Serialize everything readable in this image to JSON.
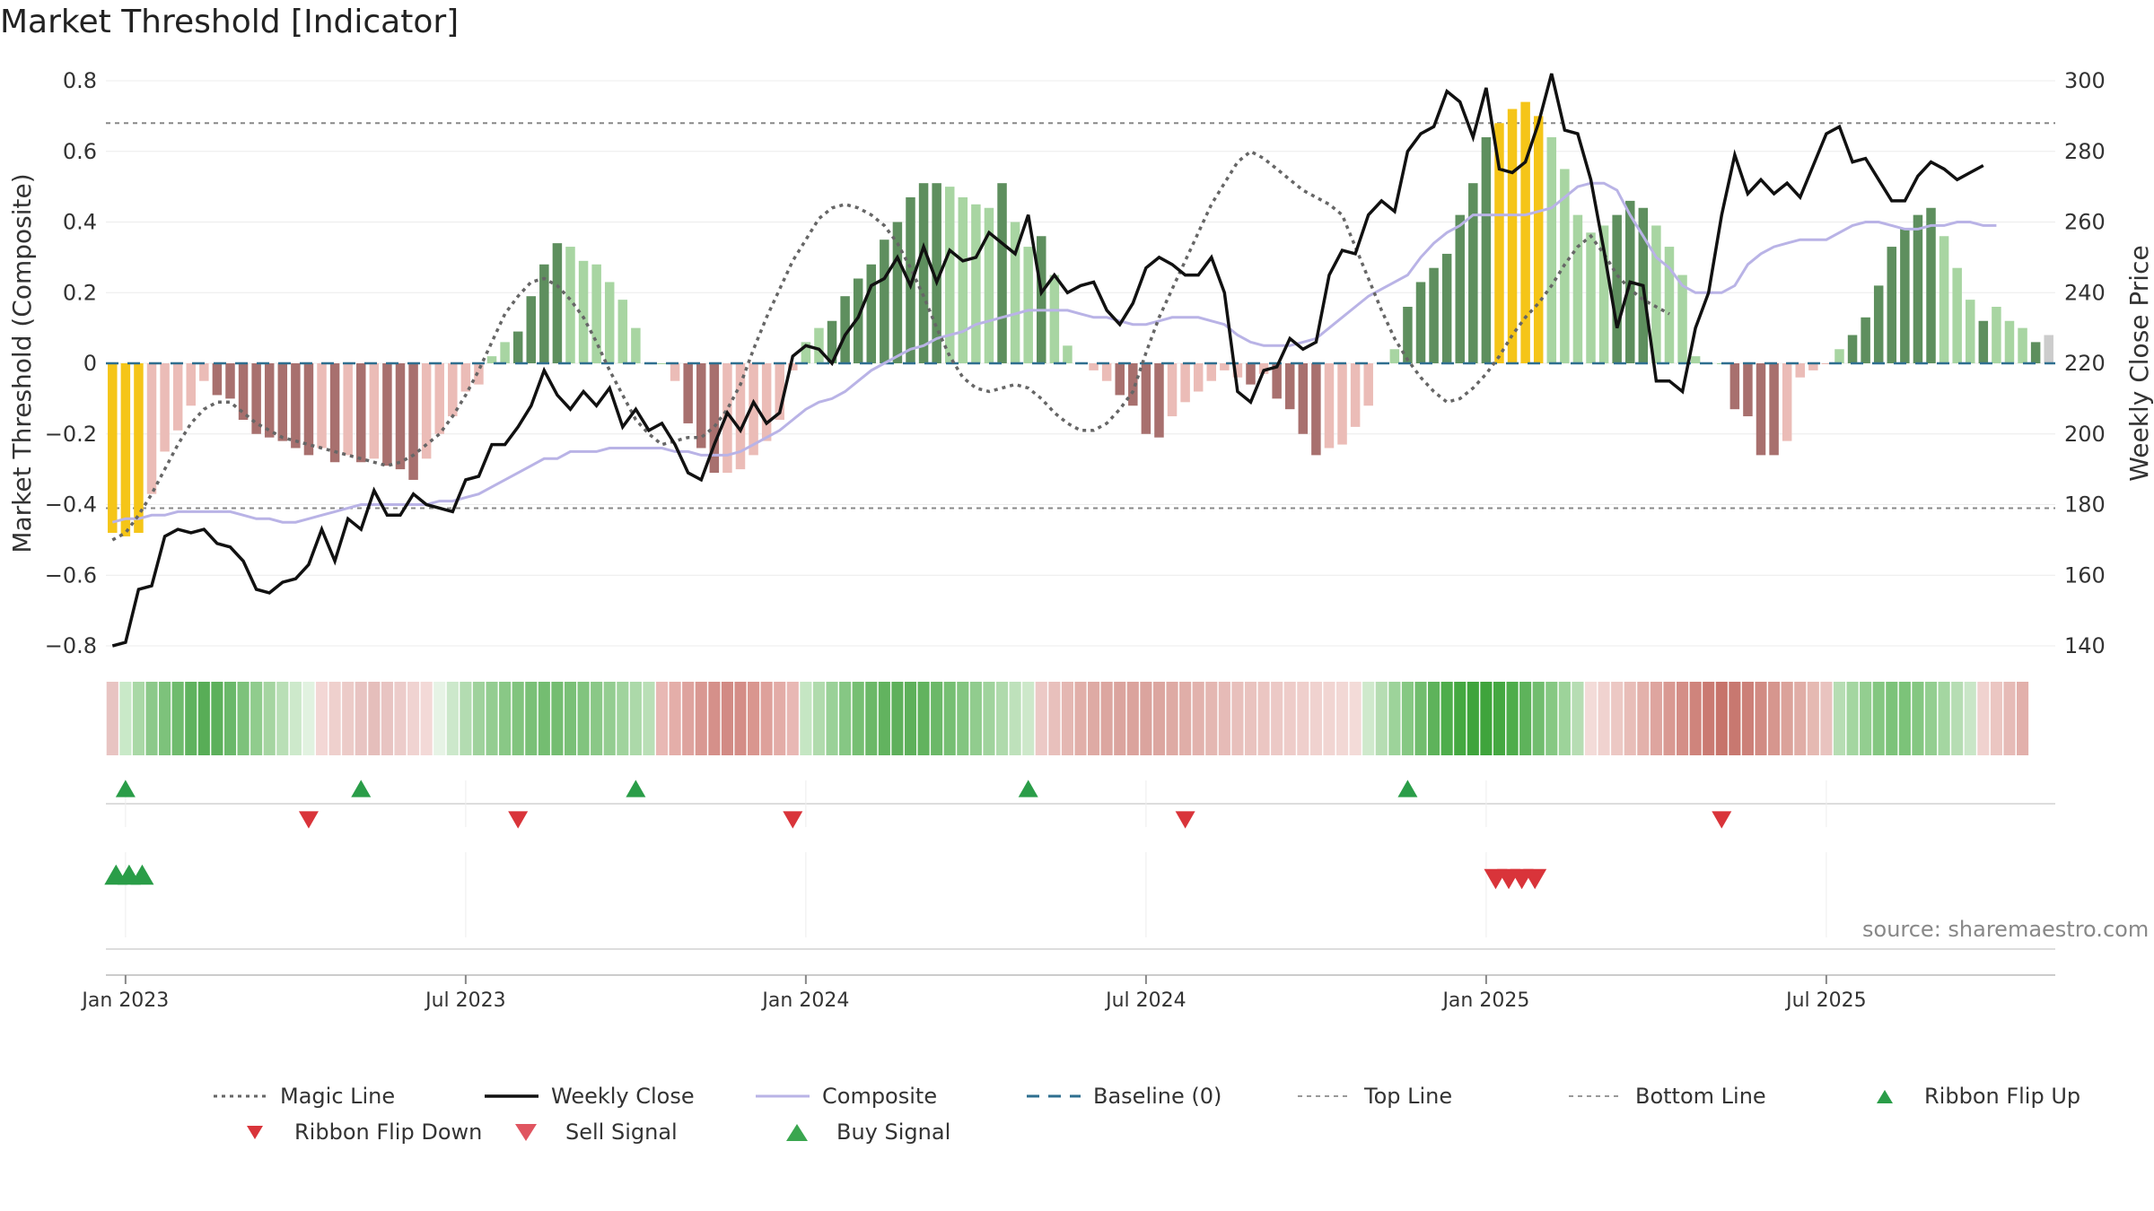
{
  "title": "Market Threshold [Indicator]",
  "source_note": "source: sharemaestro.com",
  "colors": {
    "strong_green": "#5e8f5e",
    "light_green": "#a8d5a2",
    "strong_red": "#a8706e",
    "light_red": "#ebbcb7",
    "yellow": "#f5c518",
    "composite": "#b9b3e6",
    "close": "#111111",
    "magic": "#666666",
    "baseline": "#2f6f8f",
    "buy": "#2a9d48",
    "sell": "#d9343a"
  },
  "chart_data": {
    "type": "bar+line",
    "ylabel_left": "Market Threshold (Composite)",
    "ylabel_right": "Weekly Close Price",
    "left_ticks": [
      0.8,
      0.6,
      0.4,
      0.2,
      0,
      -0.2,
      -0.4,
      -0.6,
      -0.8
    ],
    "left_tick_labels": [
      "0.8",
      "0.6",
      "0.4",
      "0.2",
      "0",
      "−0.2",
      "−0.4",
      "−0.6",
      "−0.8"
    ],
    "right_ticks": [
      300,
      280,
      260,
      240,
      220,
      200,
      180,
      160,
      140
    ],
    "right_tick_labels": [
      "300",
      "280",
      "260",
      "240",
      "220",
      "200",
      "180",
      "160",
      "140"
    ],
    "ylim_left": [
      -0.8,
      0.8
    ],
    "ylim_right": [
      140,
      300
    ],
    "x_ticks": [
      "Jan 2023",
      "Jul 2023",
      "Jan 2024",
      "Jul 2024",
      "Jan 2025",
      "Jul 2025"
    ],
    "x_tick_weeks": [
      1,
      27,
      53,
      79,
      105,
      131
    ],
    "top_line": 0.68,
    "bottom_line": -0.41,
    "bars": [
      -0.48,
      -0.49,
      -0.48,
      -0.37,
      -0.25,
      -0.19,
      -0.12,
      -0.05,
      -0.09,
      -0.1,
      -0.16,
      -0.2,
      -0.21,
      -0.22,
      -0.24,
      -0.26,
      -0.24,
      -0.28,
      -0.26,
      -0.28,
      -0.27,
      -0.29,
      -0.3,
      -0.33,
      -0.27,
      -0.2,
      -0.15,
      -0.08,
      -0.06,
      0.02,
      0.06,
      0.09,
      0.19,
      0.28,
      0.34,
      0.33,
      0.29,
      0.28,
      0.23,
      0.18,
      0.1,
      0.0,
      0.0,
      -0.05,
      -0.17,
      -0.24,
      -0.31,
      -0.31,
      -0.3,
      -0.26,
      -0.22,
      -0.16,
      -0.02,
      0.06,
      0.1,
      0.12,
      0.19,
      0.24,
      0.28,
      0.35,
      0.4,
      0.47,
      0.51,
      0.51,
      0.5,
      0.47,
      0.45,
      0.44,
      0.51,
      0.4,
      0.33,
      0.36,
      0.25,
      0.05,
      0.0,
      -0.02,
      -0.05,
      -0.09,
      -0.12,
      -0.2,
      -0.21,
      -0.15,
      -0.11,
      -0.08,
      -0.05,
      -0.02,
      -0.04,
      -0.06,
      -0.03,
      -0.1,
      -0.13,
      -0.2,
      -0.26,
      -0.24,
      -0.23,
      -0.18,
      -0.12,
      0.0,
      0.04,
      0.16,
      0.23,
      0.27,
      0.31,
      0.42,
      0.51,
      0.64,
      0.68,
      0.72,
      0.74,
      0.7,
      0.64,
      0.55,
      0.42,
      0.37,
      0.39,
      0.42,
      0.46,
      0.44,
      0.39,
      0.33,
      0.25,
      0.02,
      0.0,
      0.0,
      -0.13,
      -0.15,
      -0.26,
      -0.26,
      -0.22,
      -0.04,
      -0.02,
      0.0,
      0.04,
      0.08,
      0.13,
      0.22,
      0.33,
      0.38,
      0.42,
      0.44,
      0.36,
      0.27,
      0.18,
      0.12,
      0.16,
      0.12,
      0.1,
      0.06,
      0.08
    ],
    "bar_colors": [
      "yellow",
      "yellow",
      "yellow",
      "light_red",
      "light_red",
      "light_red",
      "light_red",
      "light_red",
      "strong_red",
      "strong_red",
      "strong_red",
      "strong_red",
      "strong_red",
      "strong_red",
      "strong_red",
      "strong_red",
      "light_red",
      "strong_red",
      "light_red",
      "strong_red",
      "light_red",
      "strong_red",
      "strong_red",
      "strong_red",
      "light_red",
      "light_red",
      "light_red",
      "light_red",
      "light_red",
      "light_green",
      "light_green",
      "strong_green",
      "strong_green",
      "strong_green",
      "strong_green",
      "light_green",
      "light_green",
      "light_green",
      "light_green",
      "light_green",
      "light_green",
      "light_green",
      "light_green",
      "light_red",
      "strong_red",
      "strong_red",
      "strong_red",
      "light_red",
      "light_red",
      "light_red",
      "light_red",
      "light_red",
      "light_red",
      "light_green",
      "light_green",
      "strong_green",
      "strong_green",
      "strong_green",
      "strong_green",
      "strong_green",
      "strong_green",
      "strong_green",
      "strong_green",
      "strong_green",
      "light_green",
      "light_green",
      "light_green",
      "light_green",
      "strong_green",
      "light_green",
      "light_green",
      "strong_green",
      "light_green",
      "light_green",
      "light_green",
      "light_red",
      "light_red",
      "strong_red",
      "strong_red",
      "strong_red",
      "strong_red",
      "light_red",
      "light_red",
      "light_red",
      "light_red",
      "light_red",
      "light_red",
      "strong_red",
      "light_red",
      "strong_red",
      "strong_red",
      "strong_red",
      "strong_red",
      "light_red",
      "light_red",
      "light_red",
      "light_red",
      "light_green",
      "light_green",
      "strong_green",
      "strong_green",
      "strong_green",
      "strong_green",
      "strong_green",
      "strong_green",
      "strong_green",
      "yellow",
      "yellow",
      "yellow",
      "yellow",
      "light_green",
      "light_green",
      "light_green",
      "light_green",
      "light_green",
      "strong_green",
      "strong_green",
      "strong_green",
      "light_green",
      "light_green",
      "light_green",
      "light_green",
      "light_green",
      "light_green",
      "strong_red",
      "strong_red",
      "strong_red",
      "strong_red",
      "light_red",
      "light_red",
      "light_red",
      "light_red",
      "light_green",
      "strong_green",
      "strong_green",
      "strong_green",
      "strong_green",
      "strong_green",
      "strong_green",
      "strong_green",
      "light_green",
      "light_green",
      "light_green",
      "strong_green",
      "light_green",
      "light_green",
      "light_green",
      "strong_green"
    ],
    "close": [
      140,
      141,
      156,
      157,
      171,
      173,
      172,
      173,
      169,
      168,
      164,
      156,
      155,
      158,
      159,
      163,
      173,
      164,
      176,
      173,
      184,
      177,
      177,
      183,
      180,
      179,
      178,
      187,
      188,
      197,
      197,
      202,
      208,
      218,
      211,
      207,
      212,
      208,
      213,
      202,
      207,
      201,
      203,
      197,
      189,
      187,
      197,
      206,
      201,
      209,
      203,
      206,
      222,
      225,
      224,
      220,
      228,
      233,
      242,
      244,
      250,
      242,
      253,
      243,
      252,
      249,
      250,
      257,
      254,
      251,
      262,
      240,
      245,
      240,
      242,
      243,
      235,
      231,
      237,
      247,
      250,
      248,
      245,
      245,
      250,
      240,
      212,
      209,
      218,
      219,
      227,
      224,
      226,
      245,
      252,
      251,
      262,
      266,
      263,
      280,
      285,
      287,
      297,
      294,
      284,
      298,
      275,
      274,
      277,
      288,
      302,
      286,
      285,
      272,
      252,
      230,
      243,
      242,
      215,
      215,
      212,
      230,
      240,
      262,
      279,
      268,
      272,
      268,
      271,
      267,
      276,
      285,
      287,
      277,
      278,
      272,
      266,
      266,
      273,
      277,
      275,
      272,
      274,
      276
    ],
    "composite": [
      -0.45,
      -0.44,
      -0.44,
      -0.43,
      -0.43,
      -0.42,
      -0.42,
      -0.42,
      -0.42,
      -0.42,
      -0.43,
      -0.44,
      -0.44,
      -0.45,
      -0.45,
      -0.44,
      -0.43,
      -0.42,
      -0.41,
      -0.4,
      -0.4,
      -0.4,
      -0.4,
      -0.4,
      -0.4,
      -0.39,
      -0.39,
      -0.38,
      -0.37,
      -0.35,
      -0.33,
      -0.31,
      -0.29,
      -0.27,
      -0.27,
      -0.25,
      -0.25,
      -0.25,
      -0.24,
      -0.24,
      -0.24,
      -0.24,
      -0.24,
      -0.25,
      -0.25,
      -0.26,
      -0.26,
      -0.26,
      -0.25,
      -0.23,
      -0.21,
      -0.19,
      -0.16,
      -0.13,
      -0.11,
      -0.1,
      -0.08,
      -0.05,
      -0.02,
      0.0,
      0.02,
      0.04,
      0.05,
      0.07,
      0.08,
      0.09,
      0.11,
      0.12,
      0.13,
      0.14,
      0.15,
      0.15,
      0.15,
      0.15,
      0.14,
      0.13,
      0.13,
      0.12,
      0.11,
      0.11,
      0.12,
      0.13,
      0.13,
      0.13,
      0.12,
      0.11,
      0.08,
      0.06,
      0.05,
      0.05,
      0.05,
      0.06,
      0.07,
      0.1,
      0.13,
      0.16,
      0.19,
      0.21,
      0.23,
      0.25,
      0.3,
      0.34,
      0.37,
      0.39,
      0.42,
      0.42,
      0.42,
      0.42,
      0.42,
      0.43,
      0.44,
      0.47,
      0.5,
      0.51,
      0.51,
      0.49,
      0.42,
      0.36,
      0.3,
      0.27,
      0.22,
      0.2,
      0.2,
      0.2,
      0.22,
      0.28,
      0.31,
      0.33,
      0.34,
      0.35,
      0.35,
      0.35,
      0.37,
      0.39,
      0.4,
      0.4,
      0.39,
      0.38,
      0.38,
      0.39,
      0.39,
      0.4,
      0.4,
      0.39,
      0.39
    ],
    "magic": [
      -0.5,
      -0.48,
      -0.43,
      -0.37,
      -0.3,
      -0.23,
      -0.17,
      -0.13,
      -0.11,
      -0.11,
      -0.14,
      -0.17,
      -0.19,
      -0.21,
      -0.22,
      -0.23,
      -0.24,
      -0.25,
      -0.26,
      -0.27,
      -0.28,
      -0.29,
      -0.28,
      -0.26,
      -0.23,
      -0.2,
      -0.15,
      -0.09,
      -0.02,
      0.06,
      0.14,
      0.19,
      0.23,
      0.24,
      0.22,
      0.18,
      0.13,
      0.06,
      -0.02,
      -0.09,
      -0.16,
      -0.2,
      -0.23,
      -0.22,
      -0.21,
      -0.21,
      -0.18,
      -0.13,
      -0.06,
      0.04,
      0.13,
      0.21,
      0.29,
      0.35,
      0.41,
      0.44,
      0.45,
      0.44,
      0.42,
      0.39,
      0.34,
      0.27,
      0.19,
      0.1,
      0.02,
      -0.04,
      -0.07,
      -0.08,
      -0.07,
      -0.06,
      -0.07,
      -0.1,
      -0.14,
      -0.17,
      -0.19,
      -0.19,
      -0.17,
      -0.13,
      -0.08,
      0.03,
      0.13,
      0.21,
      0.29,
      0.37,
      0.45,
      0.51,
      0.57,
      0.6,
      0.58,
      0.55,
      0.52,
      0.49,
      0.47,
      0.45,
      0.42,
      0.33,
      0.24,
      0.15,
      0.07,
      0.01,
      -0.04,
      -0.08,
      -0.11,
      -0.1,
      -0.07,
      -0.03,
      0.02,
      0.08,
      0.13,
      0.17,
      0.22,
      0.28,
      0.33,
      0.36,
      0.31,
      0.25,
      0.21,
      0.18,
      0.16,
      0.14
    ],
    "ribbon_colors": [
      "#e8c4c2",
      "#c9e9c8",
      "#a9d8a6",
      "#8cc98a",
      "#7dc27b",
      "#6fbb6d",
      "#5fb25e",
      "#58ad57",
      "#5cb05b",
      "#6ab86a",
      "#7dc27b",
      "#90cc8d",
      "#a5d5a1",
      "#b9dfb6",
      "#cde9cb",
      "#e1f2e0",
      "#f3d7d5",
      "#efd0cd",
      "#eccbc8",
      "#e8c4c2",
      "#e5bebb",
      "#e8c4c2",
      "#ecccca",
      "#f0d3d1",
      "#f3d9d7",
      "#e6f3e5",
      "#cce8cb",
      "#b3dcb1",
      "#9fd29c",
      "#94cd91",
      "#89c886",
      "#81c47e",
      "#7ac077",
      "#74bd71",
      "#74bd71",
      "#7ac077",
      "#81c47e",
      "#8ac887",
      "#94cd91",
      "#a0d39d",
      "#acd9a9",
      "#b9dfb6",
      "#e8b8b4",
      "#e4aea9",
      "#dea39e",
      "#d99892",
      "#d5908a",
      "#d28a84",
      "#d48d87",
      "#d9968f",
      "#dea19b",
      "#e3aca7",
      "#e8b8b4",
      "#c5e6c3",
      "#b0dbad",
      "#9ad198",
      "#86c784",
      "#76bf73",
      "#6bb868",
      "#62b35f",
      "#5eb05b",
      "#5eb05b",
      "#62b35f",
      "#6bb868",
      "#76bf73",
      "#83c580",
      "#91cc8e",
      "#a0d39d",
      "#afdaac",
      "#bee1bb",
      "#cde8ca",
      "#ecc9c6",
      "#e8c0bc",
      "#e4b7b2",
      "#e1afa9",
      "#deaaa4",
      "#dca6a0",
      "#dba49e",
      "#dba39d",
      "#dba49e",
      "#dca6a0",
      "#deaaa4",
      "#e0aea8",
      "#e2b2ad",
      "#e4b7b2",
      "#e6bbb7",
      "#e8c0bc",
      "#e9c3bf",
      "#ebc6c2",
      "#ecc9c6",
      "#eeccc9",
      "#efcfcc",
      "#f0d2cf",
      "#f1d5d2",
      "#f2d8d5",
      "#f3dbd8",
      "#cfe9cc",
      "#b6ddb3",
      "#9dd39a",
      "#86c883",
      "#71bd6e",
      "#5eb35b",
      "#4ead4b",
      "#44a841",
      "#3fa43c",
      "#3fa43c",
      "#44a841",
      "#4ead4b",
      "#5eb35b",
      "#71bd6e",
      "#86c883",
      "#9dd39a",
      "#b6ddb3",
      "#f3dbd8",
      "#f0d2cf",
      "#ecc8c4",
      "#e8bdb8",
      "#e3b1ab",
      "#dea59f",
      "#d99992",
      "#d48e87",
      "#cf847c",
      "#ca7a72",
      "#c7746b",
      "#c87870",
      "#cc8078",
      "#d18b83",
      "#d6968e",
      "#dba29a",
      "#e0ada6",
      "#e5b9b2",
      "#e9c3bf",
      "#b6ddb3",
      "#a4d6a1",
      "#93ce90",
      "#84c781",
      "#7cc379",
      "#7cc379",
      "#84c781",
      "#93ce90",
      "#a4d6a1",
      "#b6ddb3",
      "#c9e6c7",
      "#f0d2cf",
      "#ebc6c2",
      "#e6bbb7",
      "#e2b0ab"
    ],
    "ribbon_flip_up_weeks": [
      1,
      19,
      40,
      70,
      99
    ],
    "ribbon_flip_down_weeks": [
      15,
      31,
      52,
      82,
      123
    ],
    "buy_signal_weeks": [
      0,
      1,
      2
    ],
    "sell_signal_weeks": [
      106,
      107,
      108,
      109
    ],
    "legend": [
      {
        "label": "Magic Line",
        "kind": "dotted-grey"
      },
      {
        "label": "Weekly Close",
        "kind": "solid-black"
      },
      {
        "label": "Composite",
        "kind": "solid-lavender"
      },
      {
        "label": "Baseline (0)",
        "kind": "dashed-blue"
      },
      {
        "label": "Top Line",
        "kind": "dotted-light"
      },
      {
        "label": "Bottom Line",
        "kind": "dotted-light"
      },
      {
        "label": "Ribbon Flip Up",
        "kind": "triangle-up-green"
      },
      {
        "label": "Ribbon Flip Down",
        "kind": "triangle-down-red"
      },
      {
        "label": "Sell Signal",
        "kind": "triangle-down-red-large"
      },
      {
        "label": "Buy Signal",
        "kind": "triangle-up-green-large"
      }
    ]
  }
}
